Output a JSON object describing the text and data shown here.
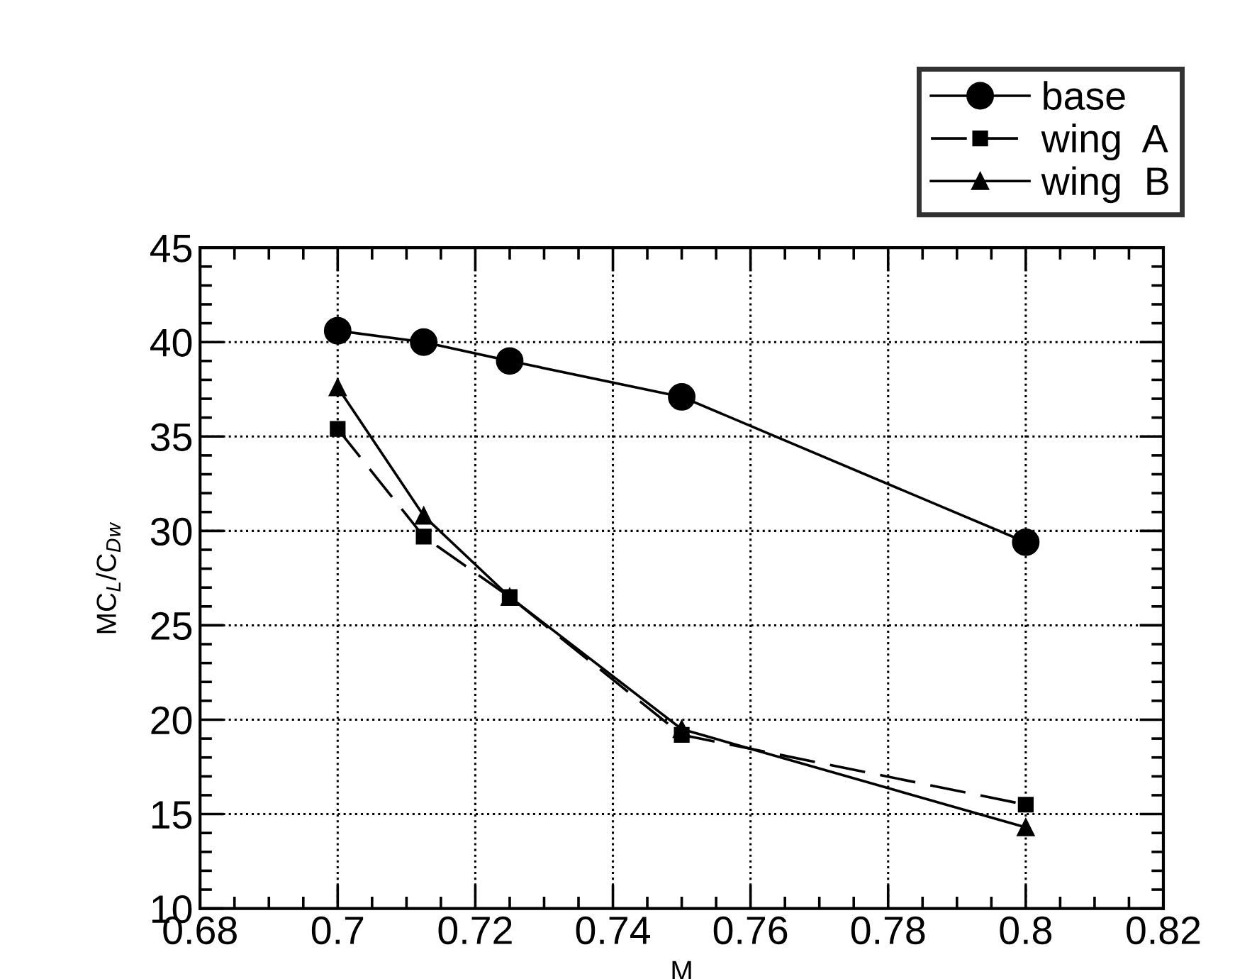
{
  "chart_data": {
    "type": "line",
    "xlabel": "M",
    "ylabel": "MC$_{L}$/C$_{Dw}$",
    "x": [
      0.7,
      0.7125,
      0.725,
      0.75,
      0.8
    ],
    "series": [
      {
        "name": "base",
        "color": "#000000",
        "marker": "circle",
        "line_style": "solid",
        "values": [
          40.6,
          40.0,
          39.0,
          37.1,
          29.4
        ]
      },
      {
        "name": "wing  A",
        "color": "#000000",
        "marker": "square",
        "line_style": "dashed",
        "values": [
          35.4,
          29.7,
          26.5,
          19.2,
          15.5
        ]
      },
      {
        "name": "wing  B",
        "color": "#000000",
        "marker": "triangle",
        "line_style": "solid",
        "values": [
          37.6,
          30.8,
          26.5,
          19.5,
          14.3
        ]
      }
    ],
    "xlim": [
      0.68,
      0.82
    ],
    "xticks": [
      0.68,
      {
        "value": 0.7,
        "label": "0.7"
      },
      0.72,
      0.74,
      0.76,
      0.78,
      {
        "value": 0.8,
        "label": "0.8"
      },
      0.82
    ],
    "ylim": [
      10,
      45
    ],
    "yticks": [
      10,
      15,
      20,
      25,
      30,
      35,
      40,
      45
    ],
    "grid": true,
    "legend": "top right"
  }
}
